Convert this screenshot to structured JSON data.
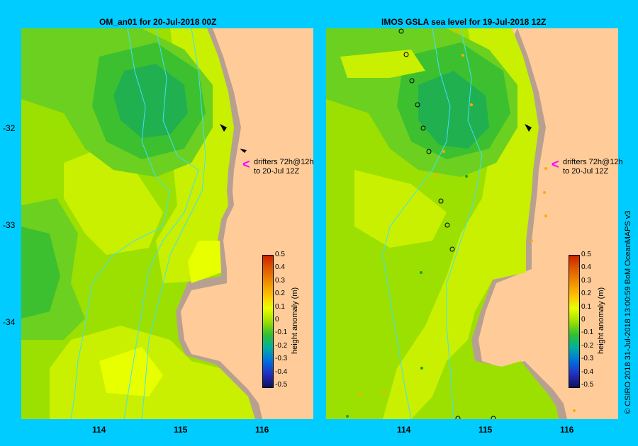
{
  "left_panel": {
    "title": "OM_an01  for 20-Jul-2018 00Z",
    "drifters_line1": "drifters 72h@12h",
    "drifters_line2": "to 20-Jul 12Z",
    "colorbar_label": "height anomaly (m)"
  },
  "right_panel": {
    "title": "IMOS GSLA sea level  for 19-Jul-2018 12Z",
    "drifters_line1": "drifters 72h@12h",
    "drifters_line2": "to 20-Jul 12Z",
    "colorbar_label": "height anomaly (m)"
  },
  "y_ticks": [
    "-32",
    "-33",
    "-34"
  ],
  "x_ticks": [
    "114",
    "115",
    "116"
  ],
  "colorbar": {
    "ticks": [
      "0.5",
      "0.4",
      "0.3",
      "0.2",
      "0.1",
      "0",
      "-0.1",
      "-0.2",
      "-0.3",
      "-0.4",
      "-0.5"
    ],
    "colors": [
      "#cc2200",
      "#e05a00",
      "#f08c00",
      "#ffc000",
      "#e8ff00",
      "#a0e000",
      "#30c030",
      "#00b0a0",
      "#0070e0",
      "#2030c0",
      "#101060"
    ]
  },
  "credit": "© CSIRO 2018   31-Jul-2018 13:00:59 BoM OceanMAPS v3",
  "colors": {
    "background": "#00ccff",
    "land": "#ffcc99",
    "coast": "#b8a090",
    "bathymetry": "#40e0ff",
    "arrow": "#ff00ff"
  }
}
